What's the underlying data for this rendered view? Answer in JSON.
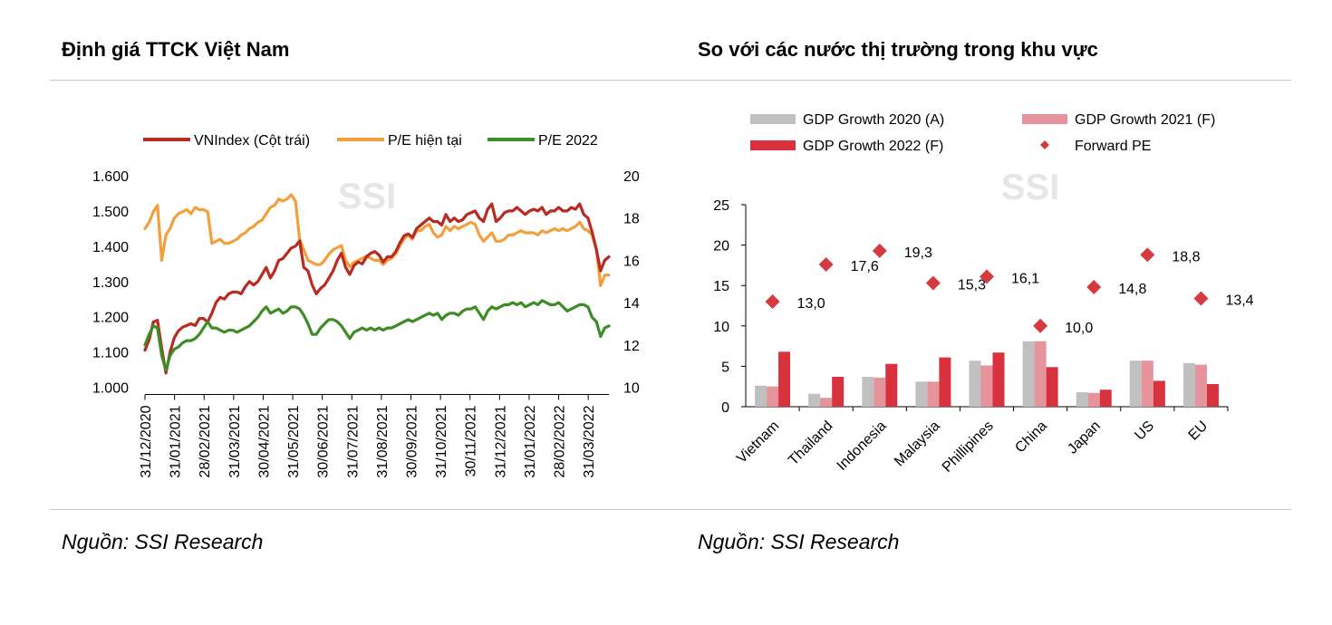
{
  "left_title": "Định giá TTCK Việt Nam",
  "right_title": "So với các nước thị trường trong khu vực",
  "left_source": "Nguồn: SSI Research",
  "right_source": "Nguồn: SSI Research",
  "watermark": "SSI",
  "colors": {
    "vnindex": "#b72b22",
    "pe_current": "#f2a03d",
    "pe_2022": "#3e8c25",
    "gdp2020": "#c0c0c0",
    "gdp2021": "#e6939b",
    "gdp2022": "#d9323f",
    "forward_pe": "#d43a40"
  },
  "chart_data": [
    {
      "type": "line",
      "series": [
        {
          "name": "VNIndex (Cột trái)",
          "axis": "left",
          "values": [
            1105,
            1135,
            1185,
            1190,
            1110,
            1040,
            1100,
            1140,
            1160,
            1170,
            1175,
            1180,
            1175,
            1195,
            1195,
            1185,
            1210,
            1240,
            1255,
            1250,
            1265,
            1270,
            1270,
            1265,
            1285,
            1300,
            1290,
            1300,
            1320,
            1340,
            1310,
            1330,
            1360,
            1365,
            1380,
            1395,
            1400,
            1415,
            1340,
            1330,
            1290,
            1265,
            1280,
            1290,
            1310,
            1330,
            1360,
            1380,
            1340,
            1320,
            1345,
            1355,
            1350,
            1370,
            1380,
            1385,
            1375,
            1355,
            1370,
            1370,
            1385,
            1410,
            1430,
            1435,
            1425,
            1450,
            1460,
            1470,
            1480,
            1470,
            1470,
            1460,
            1490,
            1470,
            1480,
            1470,
            1475,
            1490,
            1495,
            1500,
            1480,
            1470,
            1505,
            1520,
            1470,
            1480,
            1495,
            1500,
            1500,
            1510,
            1500,
            1490,
            1500,
            1505,
            1500,
            1510,
            1490,
            1500,
            1500,
            1510,
            1500,
            1500,
            1510,
            1505,
            1520,
            1490,
            1480,
            1440,
            1390,
            1330,
            1360,
            1370
          ]
        },
        {
          "name": "P/E hiện tại",
          "axis": "right",
          "values": [
            17.5,
            17.8,
            18.3,
            18.6,
            16.0,
            17.2,
            17.5,
            18.0,
            18.2,
            18.3,
            18.4,
            18.2,
            18.5,
            18.4,
            18.4,
            18.3,
            16.8,
            16.9,
            17.0,
            16.8,
            16.8,
            16.9,
            17.0,
            17.2,
            17.3,
            17.5,
            17.6,
            17.8,
            17.9,
            18.2,
            18.5,
            18.6,
            18.9,
            18.8,
            18.9,
            19.1,
            18.8,
            17.0,
            16.5,
            16.0,
            15.9,
            15.8,
            15.8,
            16.0,
            16.3,
            16.5,
            16.6,
            16.7,
            16.0,
            15.7,
            15.9,
            16.0,
            16.1,
            16.2,
            16.1,
            16.0,
            16.0,
            15.8,
            16.0,
            16.1,
            16.3,
            16.7,
            17.0,
            17.2,
            17.0,
            17.4,
            17.4,
            17.6,
            17.7,
            17.3,
            17.1,
            17.2,
            17.6,
            17.4,
            17.6,
            17.5,
            17.6,
            17.7,
            17.8,
            17.7,
            17.2,
            16.9,
            17.1,
            17.3,
            16.9,
            16.9,
            17.0,
            17.2,
            17.2,
            17.3,
            17.4,
            17.3,
            17.3,
            17.3,
            17.2,
            17.4,
            17.3,
            17.4,
            17.5,
            17.4,
            17.5,
            17.4,
            17.5,
            17.6,
            17.8,
            17.5,
            17.4,
            17.2,
            16.5,
            14.8,
            15.3,
            15.3
          ]
        },
        {
          "name": "P/E 2022",
          "axis": "right",
          "values": [
            12.0,
            12.5,
            12.9,
            12.8,
            11.5,
            10.8,
            11.5,
            11.8,
            11.9,
            12.1,
            12.2,
            12.2,
            12.3,
            12.5,
            12.8,
            13.1,
            12.8,
            12.8,
            12.7,
            12.6,
            12.7,
            12.7,
            12.6,
            12.7,
            12.8,
            12.9,
            13.1,
            13.3,
            13.6,
            13.8,
            13.5,
            13.6,
            13.7,
            13.5,
            13.6,
            13.8,
            13.8,
            13.7,
            13.4,
            13.0,
            12.5,
            12.5,
            12.8,
            13.0,
            13.2,
            13.2,
            13.1,
            12.9,
            12.6,
            12.3,
            12.6,
            12.7,
            12.8,
            12.7,
            12.8,
            12.7,
            12.8,
            12.7,
            12.8,
            12.8,
            12.9,
            13.0,
            13.1,
            13.2,
            13.1,
            13.2,
            13.3,
            13.4,
            13.5,
            13.4,
            13.5,
            13.2,
            13.4,
            13.5,
            13.5,
            13.4,
            13.6,
            13.7,
            13.7,
            13.8,
            13.5,
            13.2,
            13.6,
            13.8,
            13.7,
            13.8,
            13.9,
            13.9,
            14.0,
            13.9,
            14.0,
            13.8,
            13.9,
            14.0,
            13.9,
            14.1,
            14.0,
            13.9,
            13.9,
            14.0,
            13.8,
            13.6,
            13.7,
            13.8,
            13.9,
            13.9,
            13.8,
            13.3,
            13.1,
            12.4,
            12.8,
            12.9
          ]
        }
      ],
      "left_axis": {
        "ylim": [
          1000,
          1600
        ],
        "ticks": [
          "1.000",
          "1.100",
          "1.200",
          "1.300",
          "1.400",
          "1.500",
          "1.600"
        ]
      },
      "right_axis": {
        "ylim": [
          10,
          20
        ],
        "ticks": [
          "10",
          "12",
          "14",
          "16",
          "18",
          "20"
        ]
      },
      "x_tick_labels": [
        "31/12/2020",
        "31/01/2021",
        "28/02/2021",
        "31/03/2021",
        "30/04/2021",
        "31/05/2021",
        "30/06/2021",
        "31/07/2021",
        "31/08/2021",
        "30/09/2021",
        "31/10/2021",
        "30/11/2021",
        "31/12/2021",
        "31/01/2022",
        "28/02/2022",
        "31/03/2022"
      ],
      "legend": [
        "VNIndex (Cột trái)",
        "P/E hiện tại",
        "P/E 2022"
      ],
      "legend_placement": "top"
    },
    {
      "type": "bar",
      "categories": [
        "Vietnam",
        "Thailand",
        "Indonesia",
        "Malaysia",
        "Phillipines",
        "China",
        "Japan",
        "US",
        "EU"
      ],
      "series": [
        {
          "name": "GDP Growth 2020 (A)",
          "values": [
            2.6,
            1.6,
            3.7,
            3.1,
            5.7,
            8.1,
            1.8,
            5.7,
            5.4
          ]
        },
        {
          "name": "GDP Growth 2021 (F)",
          "values": [
            2.5,
            1.1,
            3.6,
            3.1,
            5.1,
            8.1,
            1.7,
            5.7,
            5.2
          ]
        },
        {
          "name": "GDP Growth 2022 (F)",
          "values": [
            6.8,
            3.7,
            5.3,
            6.1,
            6.7,
            4.9,
            2.1,
            3.2,
            2.8
          ]
        },
        {
          "name": "Forward PE",
          "marker": "diamond",
          "values": [
            13.0,
            17.6,
            19.3,
            15.3,
            16.1,
            10.0,
            14.8,
            18.8,
            13.4
          ],
          "labels": [
            "13,0",
            "17,6",
            "19,3",
            "15,3",
            "16,1",
            "10,0",
            "14,8",
            "18,8",
            "13,4"
          ]
        }
      ],
      "ylim": [
        0,
        25
      ],
      "y_ticks": [
        "0",
        "5",
        "10",
        "15",
        "20",
        "25"
      ],
      "legend_placement": "top"
    }
  ]
}
